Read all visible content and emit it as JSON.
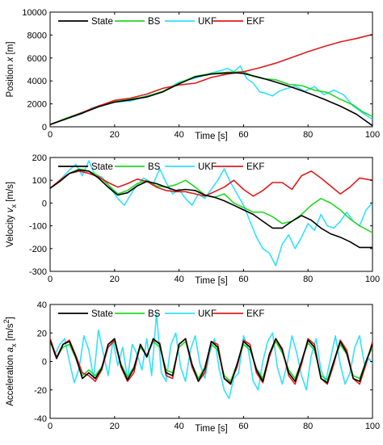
{
  "colors": {
    "State": "#000000",
    "BS": "#22d822",
    "UKF": "#33e0ff",
    "EKF": "#e01b1b"
  },
  "chart_data": [
    {
      "type": "line",
      "title": "",
      "xlabel": "Time [s]",
      "ylabel": "Position  x [m]",
      "ylabel_main": "Position",
      "ylabel_var": "x",
      "ylabel_sub": "",
      "ylabel_unit": "[m]",
      "xlim": [
        0,
        100
      ],
      "ylim": [
        0,
        10000
      ],
      "xticks": [
        0,
        20,
        40,
        60,
        80,
        100
      ],
      "yticks": [
        0,
        2000,
        4000,
        6000,
        8000,
        10000
      ],
      "legend": [
        "State",
        "BS",
        "UKF",
        "EKF"
      ],
      "legend_position": "top",
      "series": [
        {
          "name": "State",
          "x": [
            0,
            5,
            10,
            15,
            20,
            25,
            30,
            35,
            40,
            45,
            50,
            55,
            58,
            60,
            65,
            70,
            75,
            80,
            85,
            90,
            95,
            100
          ],
          "y": [
            200,
            700,
            1200,
            1750,
            2150,
            2350,
            2600,
            3050,
            3750,
            4350,
            4600,
            4700,
            4700,
            4650,
            4300,
            3900,
            3450,
            2950,
            2400,
            1800,
            1100,
            100
          ]
        },
        {
          "name": "BS",
          "x": [
            0,
            5,
            10,
            15,
            20,
            25,
            30,
            35,
            40,
            45,
            50,
            55,
            60,
            63,
            66,
            70,
            74,
            78,
            82,
            86,
            90,
            94,
            97,
            100
          ],
          "y": [
            200,
            750,
            1250,
            1800,
            2200,
            2400,
            2650,
            3100,
            3800,
            4400,
            4650,
            4750,
            4800,
            4400,
            4200,
            4100,
            3700,
            3600,
            3200,
            3000,
            2400,
            1900,
            1300,
            900
          ]
        },
        {
          "name": "UKF",
          "x": [
            0,
            5,
            10,
            13,
            16,
            20,
            25,
            30,
            35,
            40,
            45,
            48,
            50,
            53,
            55,
            57,
            59,
            61,
            63,
            65,
            67,
            69,
            71,
            73,
            76,
            79,
            82,
            85,
            88,
            91,
            94,
            97,
            100
          ],
          "y": [
            200,
            700,
            1150,
            1650,
            1900,
            2150,
            2250,
            2700,
            3050,
            3900,
            4250,
            4500,
            4700,
            4900,
            5100,
            4800,
            5300,
            4200,
            3800,
            3050,
            2900,
            2700,
            3100,
            3300,
            3550,
            3100,
            3500,
            2800,
            3200,
            2800,
            1800,
            1200,
            650
          ]
        },
        {
          "name": "EKF",
          "x": [
            0,
            5,
            10,
            15,
            20,
            25,
            30,
            35,
            40,
            45,
            50,
            55,
            60,
            65,
            70,
            75,
            80,
            85,
            90,
            95,
            100
          ],
          "y": [
            200,
            700,
            1250,
            1800,
            2300,
            2500,
            2850,
            3350,
            3650,
            3800,
            4300,
            4600,
            4800,
            5150,
            5550,
            6050,
            6550,
            7000,
            7400,
            7700,
            8050
          ]
        }
      ]
    },
    {
      "type": "line",
      "title": "",
      "xlabel": "Time [s]",
      "ylabel": "Velocity  v_x [m/s]",
      "ylabel_main": "Velocity",
      "ylabel_var": "v",
      "ylabel_sub": "x",
      "ylabel_unit": "[m/s]",
      "xlim": [
        0,
        100
      ],
      "ylim": [
        -300,
        200
      ],
      "xticks": [
        0,
        20,
        40,
        60,
        80,
        100
      ],
      "yticks": [
        -300,
        -200,
        -100,
        0,
        100,
        200
      ],
      "legend": [
        "State",
        "BS",
        "UKF",
        "EKF"
      ],
      "legend_position": "top",
      "series": [
        {
          "name": "State",
          "x": [
            0,
            3,
            6,
            9,
            12,
            15,
            18,
            21,
            24,
            27,
            30,
            33,
            36,
            39,
            42,
            45,
            48,
            51,
            54,
            57,
            60,
            63,
            66,
            69,
            72,
            75,
            78,
            81,
            84,
            87,
            90,
            93,
            96,
            100
          ],
          "y": [
            65,
            95,
            130,
            145,
            140,
            110,
            70,
            35,
            45,
            75,
            95,
            85,
            70,
            55,
            60,
            55,
            35,
            25,
            10,
            -10,
            -30,
            -50,
            -80,
            -110,
            -110,
            -80,
            -55,
            -75,
            -110,
            -135,
            -150,
            -170,
            -195,
            -195
          ]
        },
        {
          "name": "BS",
          "x": [
            0,
            3,
            6,
            9,
            12,
            15,
            18,
            21,
            24,
            27,
            30,
            33,
            36,
            39,
            42,
            45,
            48,
            51,
            54,
            57,
            60,
            63,
            66,
            69,
            72,
            75,
            78,
            81,
            84,
            87,
            90,
            93,
            96,
            100
          ],
          "y": [
            65,
            95,
            130,
            150,
            140,
            120,
            80,
            40,
            55,
            85,
            100,
            75,
            70,
            80,
            100,
            70,
            35,
            25,
            40,
            0,
            -20,
            -40,
            -40,
            -60,
            -90,
            -80,
            -50,
            -10,
            20,
            0,
            -30,
            -70,
            -100,
            -130
          ]
        },
        {
          "name": "UKF",
          "x": [
            0,
            3,
            6,
            8,
            10,
            12,
            14,
            16,
            18,
            21,
            23,
            26,
            29,
            32,
            34,
            36,
            38,
            40,
            42,
            44,
            46,
            48,
            50,
            52,
            54,
            56,
            58,
            60,
            62,
            64,
            66,
            68,
            70,
            72,
            74,
            76,
            78,
            80,
            82,
            84,
            86,
            88,
            90,
            92,
            94,
            96,
            98,
            100
          ],
          "y": [
            65,
            100,
            145,
            170,
            120,
            185,
            120,
            115,
            80,
            20,
            -10,
            60,
            110,
            85,
            150,
            90,
            40,
            60,
            20,
            -10,
            40,
            20,
            60,
            100,
            150,
            90,
            40,
            -10,
            -80,
            -150,
            -200,
            -220,
            -275,
            -180,
            -140,
            -200,
            -150,
            -90,
            -120,
            -50,
            -100,
            -110,
            -80,
            -40,
            -80,
            -100,
            -30,
            0
          ]
        },
        {
          "name": "EKF",
          "x": [
            0,
            3,
            6,
            9,
            12,
            15,
            18,
            21,
            24,
            27,
            30,
            33,
            36,
            39,
            42,
            45,
            48,
            51,
            54,
            57,
            60,
            63,
            66,
            69,
            72,
            75,
            78,
            81,
            84,
            87,
            90,
            93,
            96,
            100
          ],
          "y": [
            65,
            100,
            130,
            140,
            130,
            115,
            90,
            70,
            85,
            105,
            95,
            70,
            55,
            50,
            50,
            40,
            30,
            50,
            70,
            100,
            60,
            30,
            55,
            90,
            90,
            60,
            120,
            140,
            110,
            75,
            40,
            70,
            110,
            100
          ]
        }
      ]
    },
    {
      "type": "line",
      "title": "",
      "xlabel": "Time [s]",
      "ylabel": "Acceleration  a_x [m/s^2]",
      "ylabel_main": "Acceleration",
      "ylabel_var": "a",
      "ylabel_sub": "x",
      "ylabel_unit": "[m/s",
      "ylabel_unit_sup": "2",
      "ylabel_unit_end": "]",
      "xlim": [
        0,
        100
      ],
      "ylim": [
        -40,
        40
      ],
      "xticks": [
        0,
        20,
        40,
        60,
        80,
        100
      ],
      "yticks": [
        -40,
        -20,
        0,
        20,
        40
      ],
      "legend": [
        "State",
        "BS",
        "UKF",
        "EKF"
      ],
      "legend_position": "top",
      "series": [
        {
          "name": "State",
          "x": [
            0,
            2,
            4,
            6,
            8,
            10,
            12,
            14,
            16,
            18,
            20,
            22,
            24,
            26,
            28,
            30,
            32,
            34,
            36,
            38,
            40,
            42,
            44,
            46,
            48,
            50,
            52,
            54,
            56,
            58,
            60,
            62,
            64,
            66,
            68,
            70,
            72,
            74,
            76,
            78,
            80,
            82,
            84,
            86,
            88,
            90,
            92,
            94,
            96,
            98,
            100
          ],
          "y": [
            15,
            2,
            12,
            14,
            3,
            -12,
            -8,
            -12,
            -5,
            12,
            16,
            -3,
            -13,
            -5,
            12,
            3,
            16,
            12,
            -8,
            -10,
            12,
            16,
            -2,
            -14,
            -5,
            14,
            10,
            -12,
            -16,
            -2,
            14,
            10,
            -6,
            -14,
            5,
            16,
            8,
            -8,
            -14,
            0,
            15,
            10,
            -12,
            -15,
            0,
            14,
            6,
            -12,
            -14,
            0,
            12
          ]
        },
        {
          "name": "BS",
          "x": [
            0,
            2,
            4,
            6,
            8,
            10,
            12,
            14,
            16,
            18,
            20,
            22,
            24,
            26,
            28,
            30,
            32,
            34,
            36,
            38,
            40,
            42,
            44,
            46,
            48,
            50,
            52,
            54,
            56,
            58,
            60,
            62,
            64,
            66,
            68,
            70,
            72,
            74,
            76,
            78,
            80,
            82,
            84,
            86,
            88,
            90,
            92,
            94,
            96,
            98,
            100
          ],
          "y": [
            14,
            3,
            10,
            12,
            2,
            -10,
            -6,
            -10,
            -4,
            10,
            14,
            -2,
            -11,
            -4,
            10,
            4,
            14,
            10,
            -6,
            -8,
            10,
            14,
            -2,
            -12,
            -4,
            12,
            8,
            -10,
            -14,
            -2,
            12,
            8,
            -5,
            -12,
            4,
            14,
            6,
            -6,
            -12,
            0,
            13,
            8,
            -10,
            -13,
            0,
            12,
            5,
            -10,
            -12,
            0,
            10
          ]
        },
        {
          "name": "UKF",
          "x": [
            0,
            1.5,
            3,
            4.5,
            6,
            7.5,
            9,
            10.5,
            12,
            13.5,
            15,
            16.5,
            18,
            19.5,
            21,
            22.5,
            24,
            25.5,
            27,
            28.5,
            30,
            31.5,
            33,
            34.5,
            36,
            37.5,
            39,
            40.5,
            42,
            43.5,
            45,
            46.5,
            48,
            49.5,
            51,
            52.5,
            54,
            55.5,
            57,
            58.5,
            60,
            61.5,
            63,
            64.5,
            66,
            67.5,
            69,
            70.5,
            72,
            73.5,
            75,
            76.5,
            78,
            79.5,
            81,
            82.5,
            84,
            85.5,
            87,
            88.5,
            90,
            91.5,
            93,
            94.5,
            96,
            97.5,
            99,
            100
          ],
          "y": [
            15,
            5,
            12,
            16,
            0,
            -15,
            -5,
            18,
            8,
            -12,
            22,
            6,
            -10,
            15,
            -3,
            10,
            -12,
            12,
            5,
            -6,
            16,
            -10,
            34,
            -8,
            -14,
            12,
            20,
            -4,
            -14,
            8,
            18,
            -2,
            -12,
            6,
            16,
            -6,
            -20,
            -26,
            -12,
            -8,
            18,
            8,
            -14,
            -20,
            0,
            14,
            20,
            -4,
            -16,
            -2,
            18,
            6,
            -10,
            -20,
            4,
            16,
            -6,
            -14,
            2,
            18,
            -2,
            -16,
            -8,
            10,
            18,
            -2,
            2,
            -2
          ]
        },
        {
          "name": "EKF",
          "x": [
            0,
            2,
            4,
            6,
            8,
            10,
            12,
            14,
            16,
            18,
            20,
            22,
            24,
            26,
            28,
            30,
            32,
            34,
            36,
            38,
            40,
            42,
            44,
            46,
            48,
            50,
            52,
            54,
            56,
            58,
            60,
            62,
            64,
            66,
            68,
            70,
            72,
            74,
            76,
            78,
            80,
            82,
            84,
            86,
            88,
            90,
            92,
            94,
            96,
            98,
            100
          ],
          "y": [
            16,
            3,
            12,
            15,
            4,
            -8,
            -10,
            -14,
            -6,
            10,
            15,
            -4,
            -14,
            -8,
            12,
            4,
            15,
            13,
            -10,
            -12,
            12,
            16,
            -4,
            -14,
            -8,
            14,
            12,
            -12,
            -15,
            -4,
            15,
            12,
            -8,
            -15,
            3,
            16,
            9,
            -10,
            -16,
            -2,
            16,
            12,
            -12,
            -16,
            -2,
            15,
            8,
            -12,
            -16,
            -2,
            14
          ]
        }
      ]
    }
  ]
}
